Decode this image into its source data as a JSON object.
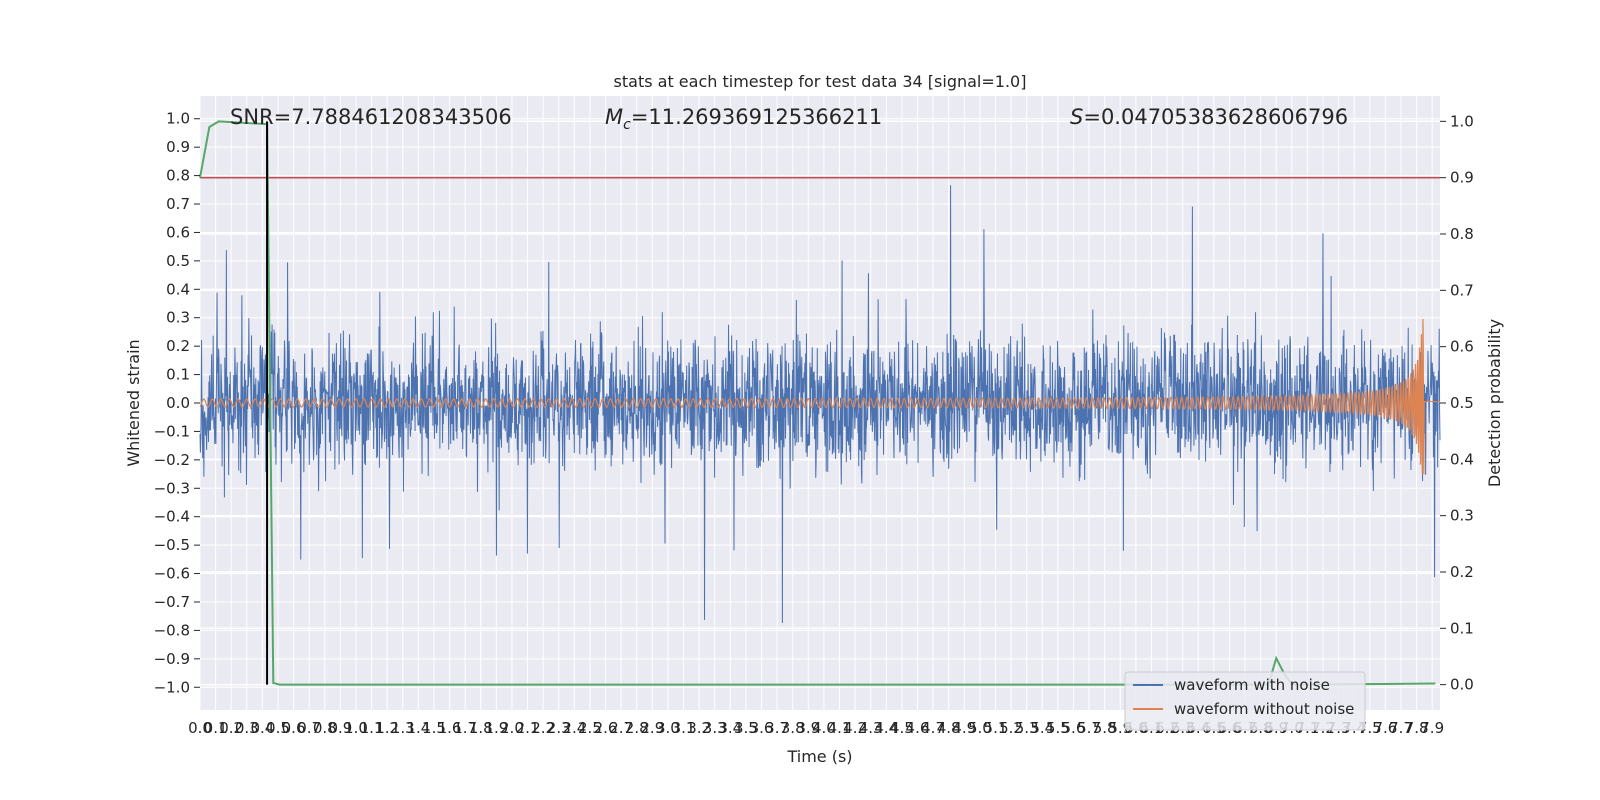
{
  "chart_data": {
    "type": "line",
    "title": "stats at each timestep for test data 34 [signal=1.0]",
    "xlabel": "Time (s)",
    "ylabel": "Whitened strain",
    "y2label": "Detection probability",
    "xlim": [
      0.0,
      7.95
    ],
    "ylim": [
      -1.08,
      1.08
    ],
    "y2lim": [
      -0.045,
      1.045
    ],
    "x_ticks": [
      "0.0",
      "0.1",
      "0.2",
      "0.3",
      "0.4",
      "0.5",
      "0.6",
      "0.7",
      "0.8",
      "0.9",
      "1.0",
      "1.1",
      "1.2",
      "1.3",
      "1.4",
      "1.5",
      "1.6",
      "1.7",
      "1.8",
      "1.9",
      "2.0",
      "2.1",
      "2.2",
      "2.3",
      "2.4",
      "2.5",
      "2.6",
      "2.7",
      "2.8",
      "2.9",
      "3.0",
      "3.1",
      "3.2",
      "3.3",
      "3.4",
      "3.5",
      "3.6",
      "3.7",
      "3.8",
      "3.9",
      "4.0",
      "4.1",
      "4.2",
      "4.3",
      "4.4",
      "4.5",
      "4.6",
      "4.7",
      "4.8",
      "4.9",
      "5.0",
      "5.1",
      "5.2",
      "5.3",
      "5.4",
      "5.5",
      "5.6",
      "5.7",
      "5.8",
      "5.9",
      "6.0",
      "6.1",
      "6.2",
      "6.3",
      "6.4",
      "6.5",
      "6.6",
      "6.7",
      "6.8",
      "6.9",
      "7.0",
      "7.1",
      "7.2",
      "7.3",
      "7.4",
      "7.5",
      "7.6",
      "7.7",
      "7.8",
      "7.9"
    ],
    "y_ticks": [
      "1.0",
      "0.9",
      "0.8",
      "0.7",
      "0.6",
      "0.5",
      "0.4",
      "0.3",
      "0.2",
      "0.1",
      "0.0",
      "−0.1",
      "−0.2",
      "−0.3",
      "−0.4",
      "−0.5",
      "−0.6",
      "−0.7",
      "−0.8",
      "−0.9",
      "−1.0"
    ],
    "y2_ticks": [
      "1.0",
      "0.9",
      "0.8",
      "0.7",
      "0.6",
      "0.5",
      "0.4",
      "0.3",
      "0.2",
      "0.1",
      "0.0"
    ],
    "annotations": {
      "snr": "SNR=7.788461208343506",
      "mc_symbol": "M",
      "mc_sub": "c",
      "mc_value": "=11.269369125366211",
      "s_symbol": "S",
      "s_value": "=0.04705383628606796"
    },
    "threshold_line": {
      "axis": "right",
      "value": 0.9,
      "color": "#c44e52"
    },
    "detection_marker": {
      "x": 0.43,
      "color": "#000000"
    },
    "series": [
      {
        "name": "waveform with noise",
        "color": "#4c72b0",
        "axis": "left",
        "envelope": "noise amplitude about ±0.3 to ±0.5 with spikes to about ±0.9"
      },
      {
        "name": "waveform without noise",
        "color": "#dd8452",
        "axis": "left",
        "chirp_peak": {
          "x": 7.85,
          "max": 0.38,
          "min": -0.25
        }
      },
      {
        "color": "#55a868",
        "axis": "right",
        "points": [
          [
            0.0,
            0.9
          ],
          [
            0.06,
            0.99
          ],
          [
            0.12,
            1.0
          ],
          [
            0.43,
            0.995
          ],
          [
            0.47,
            0.003
          ],
          [
            0.51,
            0.0
          ],
          [
            6.85,
            0.0
          ],
          [
            6.9,
            0.047
          ],
          [
            6.95,
            0.02
          ],
          [
            7.0,
            0.0
          ],
          [
            7.92,
            0.002
          ]
        ]
      }
    ],
    "legend": {
      "position": "bottom-right",
      "entries": [
        "waveform with noise",
        "waveform without noise"
      ]
    },
    "grid": true
  },
  "colors": {
    "axes_bg": "#eaeaf2",
    "grid": "#ffffff",
    "noise": "#4c72b0",
    "clean": "#dd8452",
    "prob": "#55a868",
    "threshold": "#c44e52",
    "marker": "#000000"
  }
}
